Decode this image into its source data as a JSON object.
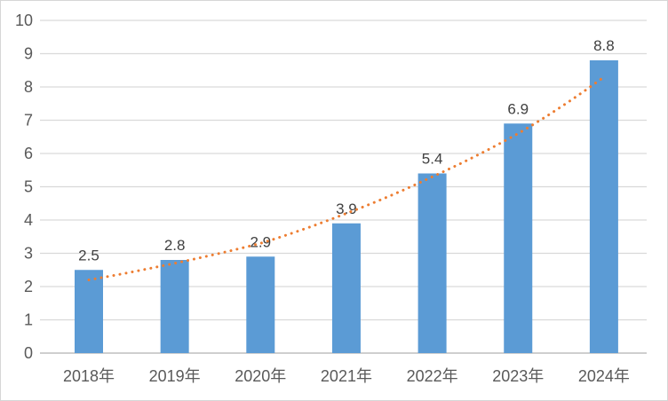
{
  "chart_data": {
    "type": "bar",
    "title": "",
    "categories": [
      "2018年",
      "2019年",
      "2020年",
      "2021年",
      "2022年",
      "2023年",
      "2024年"
    ],
    "values": [
      2.5,
      2.8,
      2.9,
      3.9,
      5.4,
      6.9,
      8.8
    ],
    "data_labels": [
      "2.5",
      "2.8",
      "2.9",
      "3.9",
      "5.4",
      "6.9",
      "8.8"
    ],
    "yticks": [
      "0",
      "1",
      "2",
      "3",
      "4",
      "5",
      "6",
      "7",
      "8",
      "9",
      "10"
    ],
    "ylim": [
      0,
      10
    ],
    "ytick_step": 1,
    "grid": true,
    "legend": "none",
    "xlabel": "",
    "ylabel": "",
    "trendline": {
      "type": "exponential",
      "style": "dotted",
      "values": [
        2.2,
        2.7,
        3.3,
        4.2,
        5.3,
        6.6,
        8.3
      ]
    },
    "colors": {
      "bar": "#5B9BD5",
      "trendline": "#ED7D31",
      "gridline": "#D9D9D9",
      "axis_line": "#CFCFCF",
      "axis_text": "#595959",
      "data_label_text": "#404040",
      "background": "#FFFFFF",
      "frame_border": "#D6D6D6"
    }
  }
}
